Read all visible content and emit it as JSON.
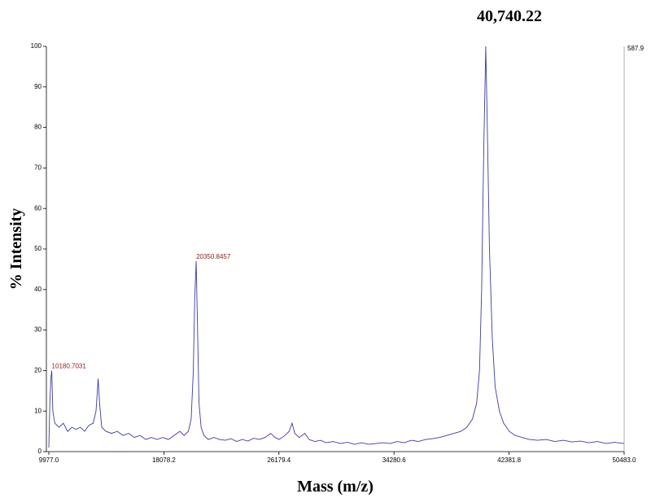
{
  "chart_data": {
    "type": "line",
    "title": "40,740.22",
    "x_label": "Mass (m/z)",
    "y_label": "% Intensity",
    "max_count_label": "587.9",
    "xlim": [
      9977.0,
      50483.0
    ],
    "xticks": [
      {
        "value": 9977.0,
        "label": "9977.0"
      },
      18078.2,
      26179.4,
      34280.6,
      42381.8,
      {
        "value": 50483.0,
        "label": "50483.0"
      }
    ],
    "ylim": [
      0,
      100
    ],
    "yticks": [
      0,
      10,
      20,
      30,
      40,
      50,
      60,
      70,
      80,
      90,
      100
    ],
    "annotations": [
      "10180.7031",
      "20350.8457"
    ],
    "series": [
      {
        "color": "#3b3ba3",
        "x": [
          9977,
          10050,
          10120,
          10180.7031,
          10260,
          10400,
          10700,
          11000,
          11300,
          11600,
          11900,
          12200,
          12500,
          12800,
          13100,
          13300,
          13450,
          13550,
          13700,
          14000,
          14400,
          14800,
          15200,
          15600,
          16000,
          16400,
          16800,
          17200,
          17600,
          18000,
          18400,
          18800,
          19200,
          19500,
          19800,
          20000,
          20150,
          20250,
          20350.8457,
          20450,
          20550,
          20700,
          20900,
          21200,
          21600,
          22000,
          22400,
          22800,
          23200,
          23600,
          24000,
          24400,
          24800,
          25200,
          25600,
          25900,
          26200,
          26600,
          26900,
          27100,
          27300,
          27600,
          28000,
          28300,
          28700,
          29100,
          29500,
          30000,
          30500,
          31000,
          31500,
          32000,
          32500,
          33000,
          33500,
          34000,
          34500,
          35000,
          35500,
          36000,
          36500,
          37000,
          37500,
          38000,
          38500,
          39000,
          39400,
          39800,
          40100,
          40300,
          40450,
          40600,
          40740.22,
          40850,
          41000,
          41200,
          41400,
          41700,
          42000,
          42400,
          42800,
          43300,
          43800,
          44400,
          45000,
          45600,
          46200,
          46800,
          47400,
          48000,
          48600,
          49200,
          49800,
          50483
        ],
        "values": [
          1,
          12,
          18,
          20,
          10,
          7,
          6,
          7,
          5,
          6,
          5.5,
          6,
          5,
          6.5,
          7,
          10,
          18,
          12,
          6,
          5,
          4.5,
          5,
          4,
          4.5,
          3.5,
          4,
          3,
          3.5,
          3,
          3.5,
          3,
          4,
          5,
          4,
          5,
          8,
          20,
          38,
          47,
          30,
          12,
          6,
          4,
          3,
          3.5,
          3,
          2.8,
          3.2,
          2.5,
          3,
          2.6,
          3.3,
          3,
          3.5,
          4.5,
          3.5,
          3,
          4,
          5,
          7,
          4.5,
          3.5,
          4.5,
          3,
          2.5,
          2.8,
          2.2,
          2.5,
          2,
          2.3,
          1.8,
          2.2,
          1.8,
          2,
          2.2,
          2,
          2.5,
          2.2,
          2.8,
          2.5,
          3,
          3.2,
          3.5,
          4,
          4.5,
          5,
          6,
          8,
          12,
          20,
          40,
          75,
          100,
          80,
          50,
          28,
          16,
          10,
          7,
          5,
          4,
          3.5,
          3,
          2.8,
          3,
          2.5,
          2.8,
          2.4,
          2.6,
          2.2,
          2.5,
          2,
          2.3,
          2
        ]
      }
    ]
  }
}
